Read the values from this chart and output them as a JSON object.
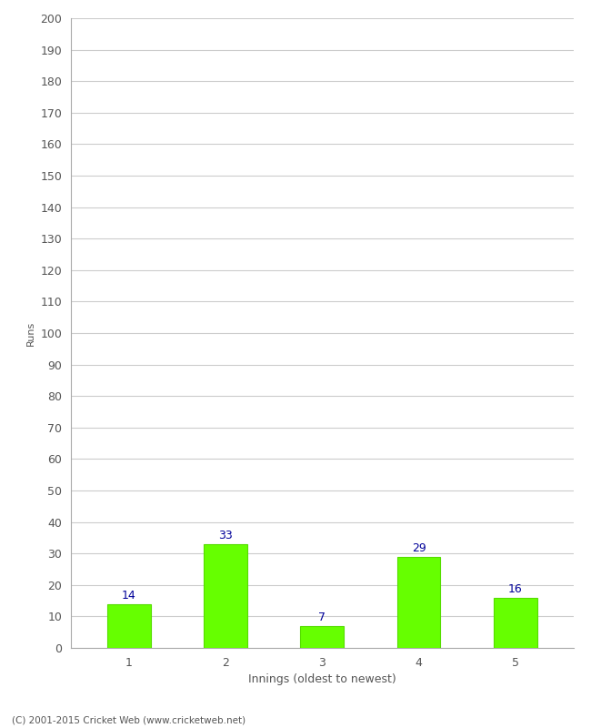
{
  "categories": [
    "1",
    "2",
    "3",
    "4",
    "5"
  ],
  "values": [
    14,
    33,
    7,
    29,
    16
  ],
  "bar_color": "#66ff00",
  "bar_edge_color": "#55dd00",
  "label_color": "#000099",
  "xlabel": "Innings (oldest to newest)",
  "ylabel": "Runs",
  "ylim": [
    0,
    200
  ],
  "yticks": [
    0,
    10,
    20,
    30,
    40,
    50,
    60,
    70,
    80,
    90,
    100,
    110,
    120,
    130,
    140,
    150,
    160,
    170,
    180,
    190,
    200
  ],
  "footer": "(C) 2001-2015 Cricket Web (www.cricketweb.net)",
  "background_color": "#ffffff",
  "grid_color": "#cccccc",
  "spine_color": "#aaaaaa",
  "tick_label_color": "#555555",
  "bar_width": 0.45
}
